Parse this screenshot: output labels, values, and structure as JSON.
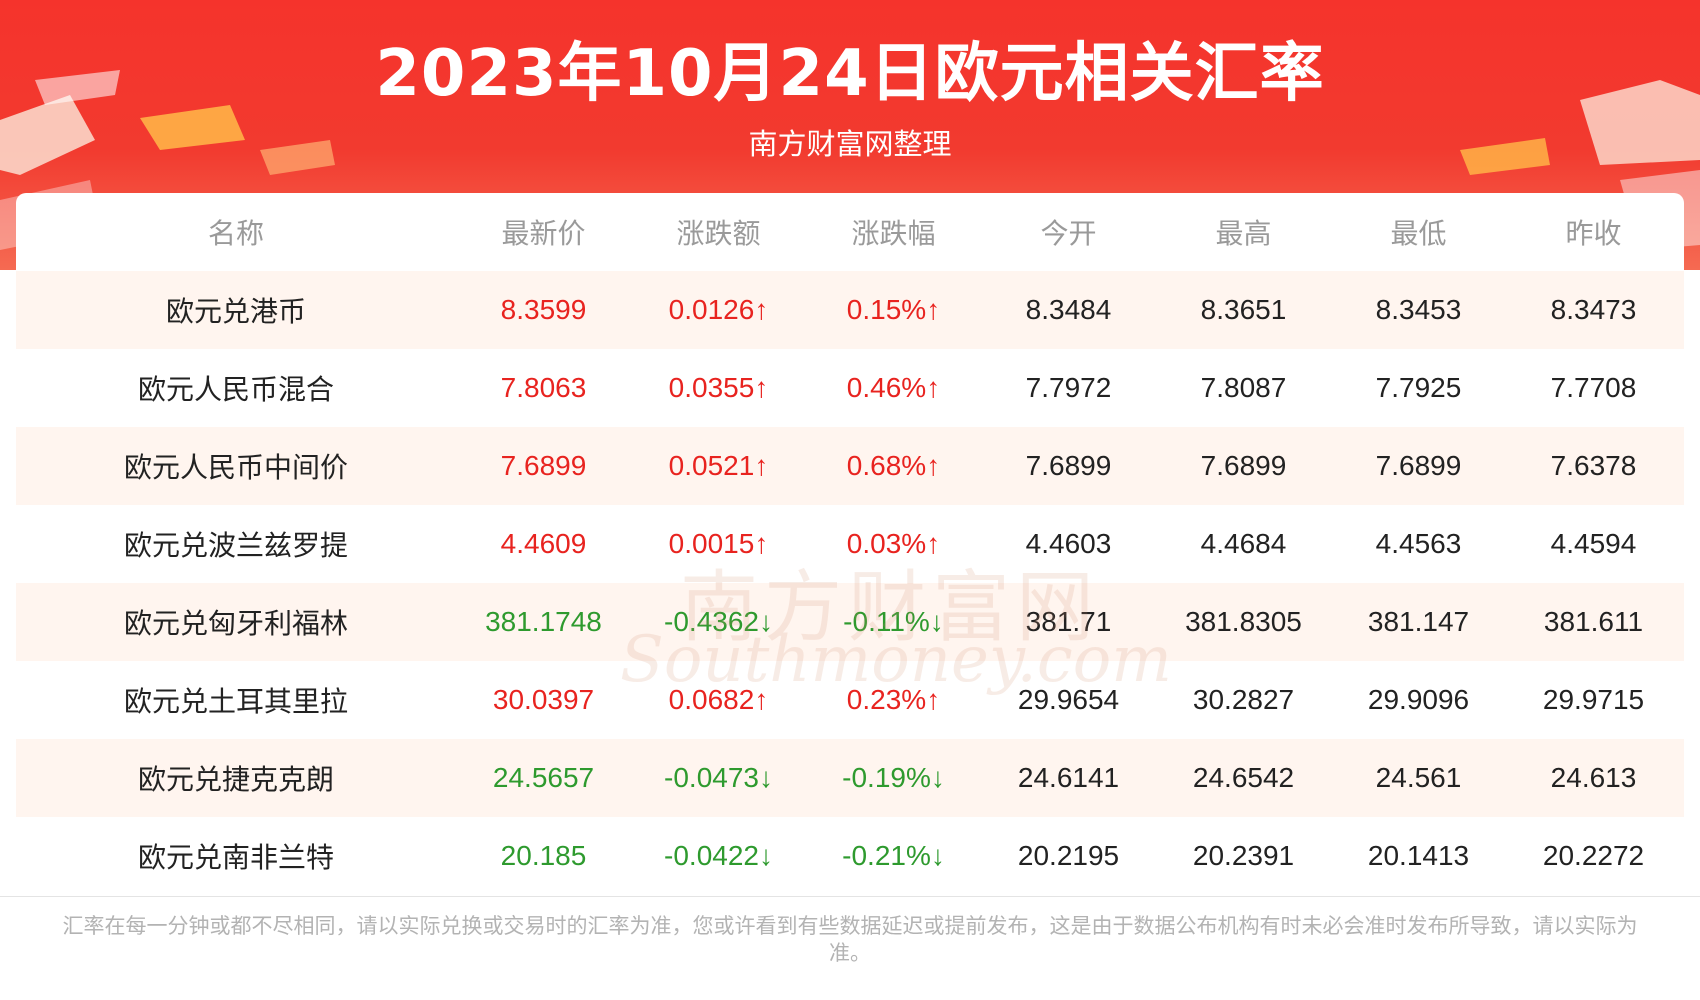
{
  "header": {
    "title": "2023年10月24日欧元相关汇率",
    "subtitle": "南方财富网整理"
  },
  "table": {
    "columns": [
      "名称",
      "最新价",
      "涨跌额",
      "涨跌幅",
      "今开",
      "最高",
      "最低",
      "昨收"
    ],
    "rows": [
      {
        "name": "欧元兑港币",
        "latest": "8.3599",
        "change": "0.0126↑",
        "pct": "0.15%↑",
        "open": "8.3484",
        "high": "8.3651",
        "low": "8.3453",
        "prev": "8.3473",
        "trend": "up"
      },
      {
        "name": "欧元人民币混合",
        "latest": "7.8063",
        "change": "0.0355↑",
        "pct": "0.46%↑",
        "open": "7.7972",
        "high": "7.8087",
        "low": "7.7925",
        "prev": "7.7708",
        "trend": "up"
      },
      {
        "name": "欧元人民币中间价",
        "latest": "7.6899",
        "change": "0.0521↑",
        "pct": "0.68%↑",
        "open": "7.6899",
        "high": "7.6899",
        "low": "7.6899",
        "prev": "7.6378",
        "trend": "up"
      },
      {
        "name": "欧元兑波兰兹罗提",
        "latest": "4.4609",
        "change": "0.0015↑",
        "pct": "0.03%↑",
        "open": "4.4603",
        "high": "4.4684",
        "low": "4.4563",
        "prev": "4.4594",
        "trend": "up"
      },
      {
        "name": "欧元兑匈牙利福林",
        "latest": "381.1748",
        "change": "-0.4362↓",
        "pct": "-0.11%↓",
        "open": "381.71",
        "high": "381.8305",
        "low": "381.147",
        "prev": "381.611",
        "trend": "down"
      },
      {
        "name": "欧元兑土耳其里拉",
        "latest": "30.0397",
        "change": "0.0682↑",
        "pct": "0.23%↑",
        "open": "29.9654",
        "high": "30.2827",
        "low": "29.9096",
        "prev": "29.9715",
        "trend": "up"
      },
      {
        "name": "欧元兑捷克克朗",
        "latest": "24.5657",
        "change": "-0.0473↓",
        "pct": "-0.19%↓",
        "open": "24.6141",
        "high": "24.6542",
        "low": "24.561",
        "prev": "24.613",
        "trend": "down"
      },
      {
        "name": "欧元兑南非兰特",
        "latest": "20.185",
        "change": "-0.0422↓",
        "pct": "-0.21%↓",
        "open": "20.2195",
        "high": "20.2391",
        "low": "20.1413",
        "prev": "20.2272",
        "trend": "down"
      }
    ]
  },
  "footnote": "汇率在每一分钟或都不尽相同，请以实际兑换或交易时的汇率为准，您或许看到有些数据延迟或提前发布，这是由于数据公布机构有时未必会准时发布所导致，请以实际为准。",
  "watermark": {
    "cn": "南方财富网",
    "en": "Southmoney.com"
  },
  "colors": {
    "header_red": "#f5332c",
    "up": "#e8231f",
    "down": "#2e9a2e",
    "row_shade": "#fff5ef"
  }
}
